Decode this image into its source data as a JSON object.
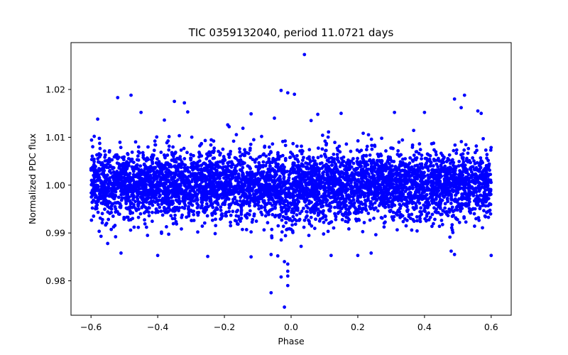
{
  "chart_data": {
    "type": "scatter",
    "title": "TIC 0359132040, period 11.0721 days",
    "xlabel": "Phase",
    "ylabel": "Normalized PDC flux",
    "xlim": [
      -0.66,
      0.66
    ],
    "ylim": [
      0.9728,
      1.0298
    ],
    "xticks": [
      -0.6,
      -0.4,
      -0.2,
      0.0,
      0.2,
      0.4,
      0.6
    ],
    "xtick_labels": [
      "−0.6",
      "−0.4",
      "−0.2",
      "0.0",
      "0.2",
      "0.4",
      "0.6"
    ],
    "yticks": [
      0.98,
      0.99,
      1.0,
      1.01,
      1.02
    ],
    "ytick_labels": [
      "0.98",
      "0.99",
      "1.00",
      "1.01",
      "1.02"
    ],
    "grid": false,
    "marker_color": "#0000ff",
    "series": [
      {
        "name": "PDC flux",
        "phase_range": [
          -0.6,
          0.6
        ],
        "baseline_flux": 1.0,
        "scatter_sigma": 0.0035,
        "dense_band": [
          0.993,
          1.007
        ],
        "transit": {
          "center_phase": -0.01,
          "depth": 0.01,
          "half_width": 0.03
        },
        "points": [
          {
            "x": 0.04,
            "y": 1.0273
          },
          {
            "x": -0.03,
            "y": 1.0198
          },
          {
            "x": -0.01,
            "y": 1.0193
          },
          {
            "x": 0.01,
            "y": 1.019
          },
          {
            "x": -0.48,
            "y": 1.0188
          },
          {
            "x": 0.52,
            "y": 1.0188
          },
          {
            "x": -0.52,
            "y": 1.0183
          },
          {
            "x": 0.49,
            "y": 1.018
          },
          {
            "x": -0.35,
            "y": 1.0175
          },
          {
            "x": -0.32,
            "y": 1.0172
          },
          {
            "x": 0.51,
            "y": 1.0162
          },
          {
            "x": -0.45,
            "y": 1.0152
          },
          {
            "x": 0.56,
            "y": 1.0155
          },
          {
            "x": 0.4,
            "y": 1.0152
          },
          {
            "x": 0.57,
            "y": 1.015
          },
          {
            "x": -0.31,
            "y": 1.0153
          },
          {
            "x": 0.08,
            "y": 1.0148
          },
          {
            "x": 0.15,
            "y": 1.015
          },
          {
            "x": -0.12,
            "y": 1.0149
          },
          {
            "x": 0.31,
            "y": 1.0152
          },
          {
            "x": -0.05,
            "y": 1.014
          },
          {
            "x": -0.58,
            "y": 1.0138
          },
          {
            "x": 0.06,
            "y": 1.0135
          },
          {
            "x": -0.38,
            "y": 1.0136
          },
          {
            "x": -0.19,
            "y": 1.0126
          },
          {
            "x": -0.57,
            "y": 0.9893
          },
          {
            "x": -0.55,
            "y": 0.9878
          },
          {
            "x": -0.51,
            "y": 0.9858
          },
          {
            "x": -0.4,
            "y": 0.9853
          },
          {
            "x": -0.25,
            "y": 0.9851
          },
          {
            "x": -0.12,
            "y": 0.985
          },
          {
            "x": -0.06,
            "y": 0.9855
          },
          {
            "x": -0.04,
            "y": 0.9852
          },
          {
            "x": -0.02,
            "y": 0.984
          },
          {
            "x": -0.01,
            "y": 0.9835
          },
          {
            "x": -0.01,
            "y": 0.982
          },
          {
            "x": -0.01,
            "y": 0.981
          },
          {
            "x": -0.03,
            "y": 0.9808
          },
          {
            "x": -0.01,
            "y": 0.979
          },
          {
            "x": -0.06,
            "y": 0.9775
          },
          {
            "x": -0.02,
            "y": 0.9745
          },
          {
            "x": 0.12,
            "y": 0.9853
          },
          {
            "x": 0.2,
            "y": 0.9853
          },
          {
            "x": 0.24,
            "y": 0.9858
          },
          {
            "x": 0.48,
            "y": 0.9862
          },
          {
            "x": 0.49,
            "y": 0.9855
          },
          {
            "x": 0.6,
            "y": 0.9853
          },
          {
            "x": 0.03,
            "y": 0.9872
          }
        ]
      }
    ]
  }
}
